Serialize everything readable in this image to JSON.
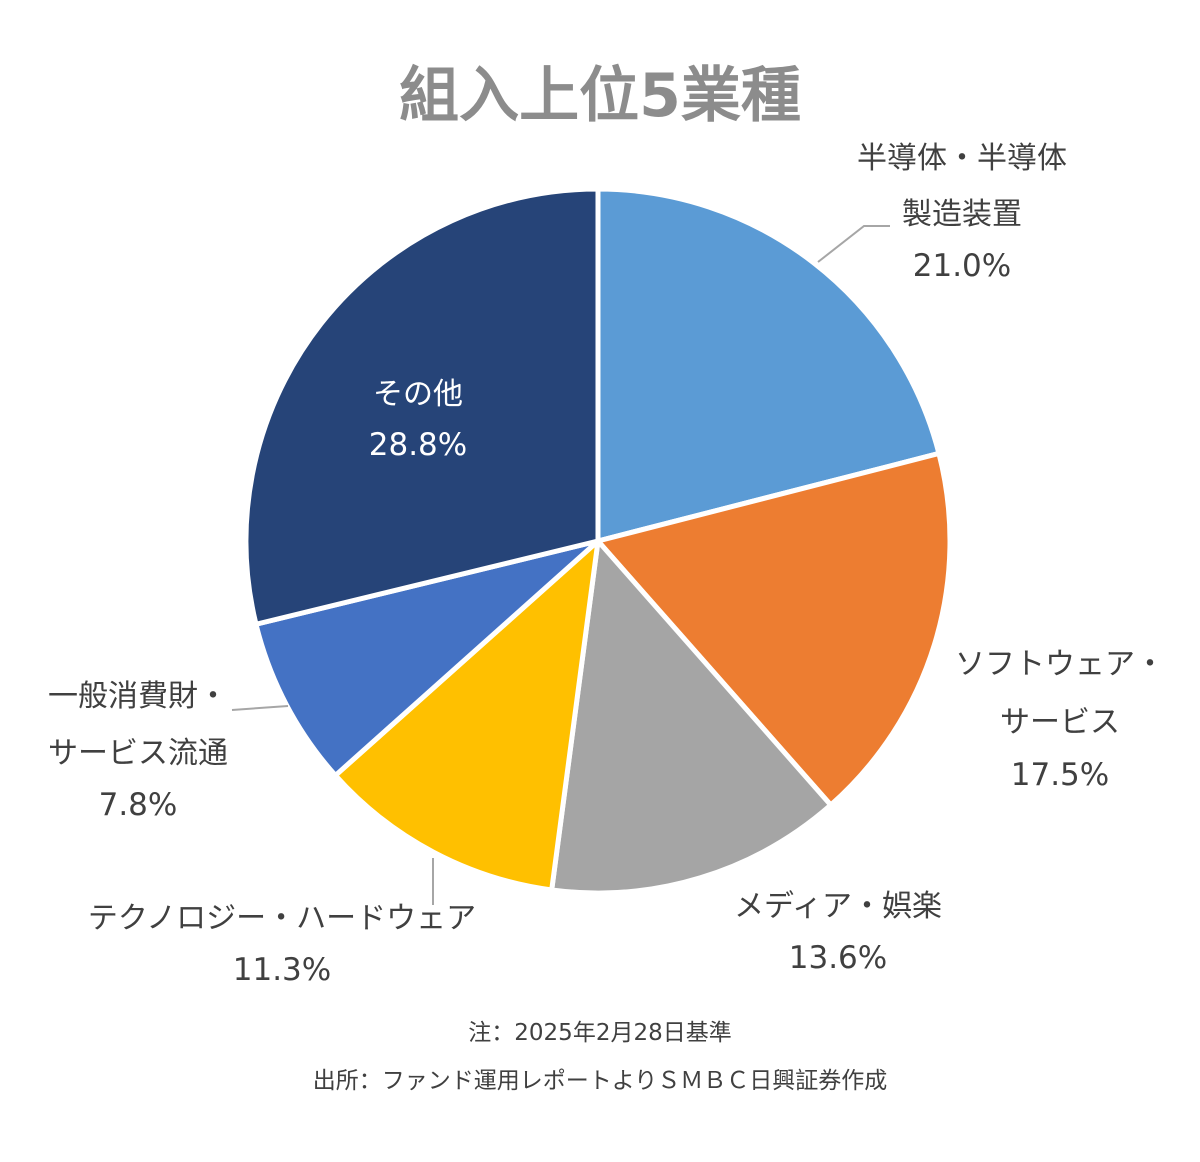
{
  "chart_data": {
    "type": "pie",
    "title": "組入上位5業種",
    "slices": [
      {
        "label_lines": [
          "半導体・半導体",
          "製造装置"
        ],
        "value": 21.0,
        "value_label": "21.0%",
        "color": "#5b9bd5"
      },
      {
        "label_lines": [
          "ソフトウェア・",
          "サービス"
        ],
        "value": 17.5,
        "value_label": "17.5%",
        "color": "#ed7d31"
      },
      {
        "label_lines": [
          "メディア・娯楽"
        ],
        "value": 13.6,
        "value_label": "13.6%",
        "color": "#a5a5a5"
      },
      {
        "label_lines": [
          "テクノロジー・ハードウェア"
        ],
        "value": 11.3,
        "value_label": "11.3%",
        "color": "#ffc000"
      },
      {
        "label_lines": [
          "一般消費財・",
          "サービス流通"
        ],
        "value": 7.8,
        "value_label": "7.8%",
        "color": "#4472c4"
      },
      {
        "label_lines": [
          "その他"
        ],
        "value": 28.8,
        "value_label": "28.8%",
        "color": "#264478"
      }
    ],
    "start_angle": "12 o'clock",
    "direction": "clockwise",
    "legend": "none"
  },
  "notes": {
    "date_note": "注：2025年2月28日基準",
    "source_note": "出所：ファンド運用レポートよりＳＭＢＣ日興証券作成"
  }
}
